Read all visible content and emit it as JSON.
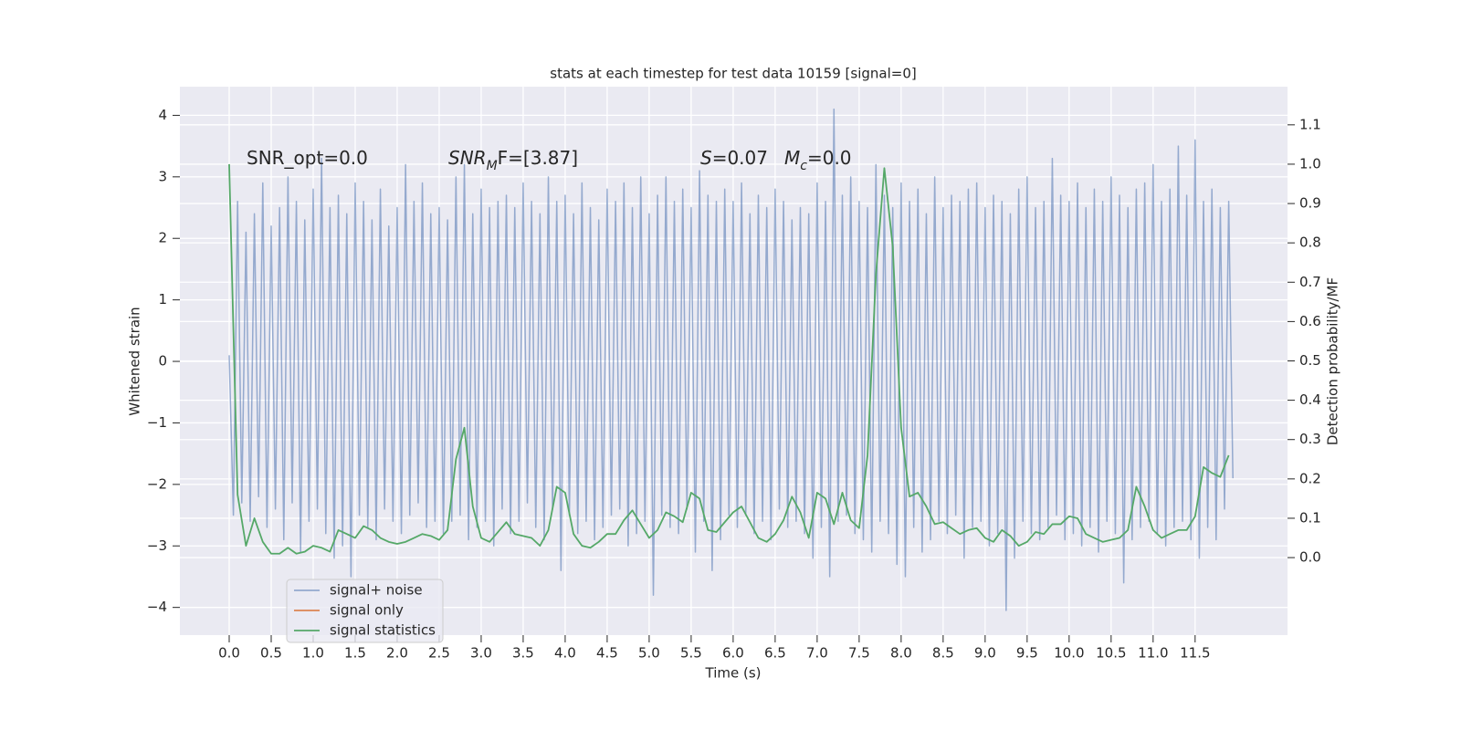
{
  "chart_data": {
    "type": "line",
    "title": "stats at each timestep for test data 10159 [signal=0]",
    "xlabel": "Time (s)",
    "ylabel": "Whitened strain",
    "y2label": "Detection probability/MF",
    "xlim": [
      -0.587,
      12.6
    ],
    "ylim": [
      -4.45,
      4.466
    ],
    "y2lim": [
      -0.197,
      1.197
    ],
    "xticks": [
      {
        "value": 0,
        "label": "0.0"
      },
      0.5,
      {
        "value": 1,
        "label": "1.0"
      },
      1.5,
      {
        "value": 2,
        "label": "2.0"
      },
      2.5,
      {
        "value": 3,
        "label": "3.0"
      },
      3.5,
      {
        "value": 4,
        "label": "4.0"
      },
      4.5,
      {
        "value": 5,
        "label": "5.0"
      },
      5.5,
      {
        "value": 6,
        "label": "6.0"
      },
      6.5,
      {
        "value": 7,
        "label": "7.0"
      },
      7.5,
      {
        "value": 8,
        "label": "8.0"
      },
      8.5,
      {
        "value": 9,
        "label": "9.0"
      },
      9.5,
      {
        "value": 10,
        "label": "10.0"
      },
      10.5,
      {
        "value": 11,
        "label": "11.0"
      },
      11.5
    ],
    "yticks": [
      {
        "value": -4,
        "label": "−4"
      },
      {
        "value": -3,
        "label": "−3"
      },
      {
        "value": -2,
        "label": "−2"
      },
      {
        "value": -1,
        "label": "−1"
      },
      0,
      1,
      2,
      3,
      4
    ],
    "y2ticks": [
      {
        "value": 0,
        "label": "0.0"
      },
      0.1,
      0.2,
      0.3,
      0.4,
      0.5,
      0.6,
      0.7,
      0.8,
      0.9,
      {
        "value": 1,
        "label": "1.0"
      },
      1.1
    ],
    "grid": true,
    "background": "#eaeaf2",
    "legend": "lower left",
    "annotations": [
      {
        "text": "SNR_opt=0.0"
      },
      {
        "math": "SNR",
        "sub": "M",
        "text": "F=[3.87]"
      },
      {
        "math": "S",
        "text": "=0.07"
      },
      {
        "math": "M",
        "sub": "c",
        "text": "=0.0"
      }
    ],
    "series": [
      {
        "name": "signal+ noise",
        "color": "#4c72b0",
        "alpha": 0.55,
        "x": [
          0,
          0.05,
          0.1,
          0.15,
          0.2,
          0.25,
          0.3,
          0.35,
          0.4,
          0.45,
          0.5,
          0.55,
          0.6,
          0.65,
          0.7,
          0.75,
          0.8,
          0.85,
          0.9,
          0.95,
          1,
          1.05,
          1.1,
          1.15,
          1.2,
          1.25,
          1.3,
          1.35,
          1.4,
          1.45,
          1.5,
          1.55,
          1.6,
          1.65,
          1.7,
          1.75,
          1.8,
          1.85,
          1.9,
          1.95,
          2,
          2.05,
          2.1,
          2.15,
          2.2,
          2.25,
          2.3,
          2.35,
          2.4,
          2.45,
          2.5,
          2.55,
          2.6,
          2.65,
          2.7,
          2.75,
          2.8,
          2.85,
          2.9,
          2.95,
          3,
          3.05,
          3.1,
          3.15,
          3.2,
          3.25,
          3.3,
          3.35,
          3.4,
          3.45,
          3.5,
          3.55,
          3.6,
          3.65,
          3.7,
          3.75,
          3.8,
          3.85,
          3.9,
          3.95,
          4,
          4.05,
          4.1,
          4.15,
          4.2,
          4.25,
          4.3,
          4.35,
          4.4,
          4.45,
          4.5,
          4.55,
          4.6,
          4.65,
          4.7,
          4.75,
          4.8,
          4.85,
          4.9,
          4.95,
          5,
          5.05,
          5.1,
          5.15,
          5.2,
          5.25,
          5.3,
          5.35,
          5.4,
          5.45,
          5.5,
          5.55,
          5.6,
          5.65,
          5.7,
          5.75,
          5.8,
          5.85,
          5.9,
          5.95,
          6,
          6.05,
          6.1,
          6.15,
          6.2,
          6.25,
          6.3,
          6.35,
          6.4,
          6.45,
          6.5,
          6.55,
          6.6,
          6.65,
          6.7,
          6.75,
          6.8,
          6.85,
          6.9,
          6.95,
          7,
          7.05,
          7.1,
          7.15,
          7.2,
          7.25,
          7.3,
          7.35,
          7.4,
          7.45,
          7.5,
          7.55,
          7.6,
          7.65,
          7.7,
          7.75,
          7.8,
          7.85,
          7.9,
          7.95,
          8,
          8.05,
          8.1,
          8.15,
          8.2,
          8.25,
          8.3,
          8.35,
          8.4,
          8.45,
          8.5,
          8.55,
          8.6,
          8.65,
          8.7,
          8.75,
          8.8,
          8.85,
          8.9,
          8.95,
          9,
          9.05,
          9.1,
          9.15,
          9.2,
          9.25,
          9.3,
          9.35,
          9.4,
          9.45,
          9.5,
          9.55,
          9.6,
          9.65,
          9.7,
          9.75,
          9.8,
          9.85,
          9.9,
          9.95,
          10,
          10.05,
          10.1,
          10.15,
          10.2,
          10.25,
          10.3,
          10.35,
          10.4,
          10.45,
          10.5,
          10.55,
          10.6,
          10.65,
          10.7,
          10.75,
          10.8,
          10.85,
          10.9,
          10.95,
          11,
          11.05,
          11.1,
          11.15,
          11.2,
          11.25,
          11.3,
          11.35,
          11.4,
          11.45,
          11.5,
          11.55,
          11.6,
          11.65,
          11.7,
          11.75,
          11.8,
          11.85,
          11.9,
          11.95
        ],
        "values": [
          0.1,
          -2.5,
          2.6,
          -2.3,
          2.1,
          -2.6,
          2.4,
          -2.2,
          2.9,
          -2.7,
          2.2,
          -2.4,
          2.5,
          -2.9,
          3.0,
          -2.3,
          2.6,
          -3.1,
          2.3,
          -2.6,
          2.8,
          -2.4,
          3.3,
          -2.8,
          2.5,
          -3.2,
          2.7,
          -3.0,
          2.4,
          -3.5,
          2.9,
          -2.5,
          2.6,
          -2.7,
          2.3,
          -2.9,
          2.8,
          -2.4,
          2.2,
          -2.6,
          2.5,
          -2.8,
          3.2,
          -2.5,
          2.6,
          -2.3,
          2.9,
          -2.7,
          2.4,
          -2.6,
          2.5,
          -2.8,
          2.3,
          -2.6,
          3.0,
          -2.5,
          3.2,
          -2.9,
          2.4,
          -2.7,
          2.8,
          -2.6,
          2.5,
          -3.0,
          2.6,
          -2.4,
          2.7,
          -2.8,
          2.5,
          -2.6,
          2.9,
          -2.3,
          2.6,
          -2.7,
          2.4,
          -2.9,
          3.0,
          -2.4,
          2.6,
          -3.4,
          2.7,
          -2.5,
          2.4,
          -2.8,
          2.9,
          -2.6,
          2.5,
          -2.9,
          2.3,
          -2.7,
          2.8,
          -2.5,
          2.6,
          -2.4,
          2.9,
          -3.0,
          2.5,
          -2.8,
          3.0,
          -2.6,
          2.4,
          -3.8,
          2.7,
          -2.5,
          3.0,
          -2.7,
          2.6,
          -2.8,
          2.8,
          -2.4,
          2.5,
          -3.1,
          3.1,
          -2.6,
          2.7,
          -3.4,
          2.6,
          -2.9,
          2.8,
          -2.5,
          2.6,
          -2.7,
          2.9,
          -2.5,
          2.4,
          -2.8,
          2.7,
          -2.6,
          2.5,
          -2.9,
          2.8,
          -2.4,
          2.6,
          -2.7,
          2.3,
          -2.6,
          2.5,
          -2.8,
          2.4,
          -3.2,
          2.9,
          -2.7,
          2.6,
          -3.5,
          4.1,
          -2.6,
          2.7,
          -2.5,
          3.0,
          -2.8,
          2.6,
          -2.9,
          2.5,
          -3.1,
          3.2,
          -2.6,
          2.7,
          -2.8,
          2.5,
          -3.3,
          2.9,
          -3.5,
          2.6,
          -2.7,
          2.8,
          -3.1,
          2.4,
          -2.9,
          3.0,
          -2.6,
          2.5,
          -2.8,
          2.7,
          -2.5,
          2.6,
          -3.2,
          2.8,
          -2.7,
          2.9,
          -2.6,
          2.5,
          -3.0,
          2.7,
          -2.8,
          2.6,
          -4.05,
          2.4,
          -3.2,
          2.8,
          -2.6,
          3.0,
          -2.8,
          2.5,
          -2.9,
          2.6,
          -2.7,
          3.3,
          -2.5,
          2.7,
          -2.9,
          2.6,
          -2.8,
          2.9,
          -3.0,
          2.5,
          -2.7,
          2.8,
          -3.1,
          2.6,
          -2.6,
          3.0,
          -2.8,
          2.7,
          -3.6,
          2.5,
          -2.9,
          2.8,
          -2.7,
          2.9,
          -2.6,
          3.2,
          -2.8,
          2.6,
          -3.0,
          2.8,
          -2.7,
          3.5,
          -2.6,
          2.7,
          -2.9,
          3.6,
          -3.2,
          2.6,
          -2.7,
          2.8,
          -2.9,
          2.5,
          -2.4,
          2.6,
          -1.9
        ]
      },
      {
        "name": "signal only",
        "color": "#dd8452",
        "alpha": 1,
        "x": [],
        "values": []
      },
      {
        "name": "signal statistics",
        "color": "#55a868",
        "alpha": 1,
        "axis": "y2",
        "x": [
          0,
          0.1,
          0.2,
          0.3,
          0.4,
          0.5,
          0.6,
          0.7,
          0.8,
          0.9,
          1,
          1.1,
          1.2,
          1.3,
          1.4,
          1.5,
          1.6,
          1.7,
          1.8,
          1.9,
          2,
          2.1,
          2.2,
          2.3,
          2.4,
          2.5,
          2.6,
          2.7,
          2.8,
          2.9,
          3,
          3.1,
          3.2,
          3.3,
          3.4,
          3.5,
          3.6,
          3.7,
          3.8,
          3.9,
          4,
          4.1,
          4.2,
          4.3,
          4.4,
          4.5,
          4.6,
          4.7,
          4.8,
          4.9,
          5,
          5.1,
          5.2,
          5.3,
          5.4,
          5.5,
          5.6,
          5.7,
          5.8,
          5.9,
          6,
          6.1,
          6.2,
          6.3,
          6.4,
          6.5,
          6.6,
          6.7,
          6.8,
          6.9,
          7,
          7.1,
          7.2,
          7.3,
          7.4,
          7.5,
          7.6,
          7.7,
          7.8,
          7.9,
          8,
          8.1,
          8.2,
          8.3,
          8.4,
          8.5,
          8.6,
          8.7,
          8.8,
          8.9,
          9,
          9.1,
          9.2,
          9.3,
          9.4,
          9.5,
          9.6,
          9.7,
          9.8,
          9.9,
          10,
          10.1,
          10.2,
          10.3,
          10.4,
          10.5,
          10.6,
          10.7,
          10.8,
          10.9,
          11,
          11.1,
          11.2,
          11.3,
          11.4,
          11.5,
          11.6,
          11.7,
          11.8,
          11.9
        ],
        "values": [
          1.0,
          0.16,
          0.03,
          0.1,
          0.04,
          0.01,
          0.01,
          0.025,
          0.01,
          0.015,
          0.03,
          0.025,
          0.015,
          0.07,
          0.06,
          0.05,
          0.08,
          0.07,
          0.05,
          0.04,
          0.035,
          0.04,
          0.05,
          0.06,
          0.055,
          0.045,
          0.07,
          0.25,
          0.33,
          0.13,
          0.05,
          0.04,
          0.065,
          0.09,
          0.06,
          0.055,
          0.05,
          0.03,
          0.07,
          0.18,
          0.165,
          0.06,
          0.03,
          0.025,
          0.04,
          0.06,
          0.06,
          0.095,
          0.12,
          0.085,
          0.05,
          0.07,
          0.115,
          0.105,
          0.09,
          0.165,
          0.15,
          0.07,
          0.065,
          0.09,
          0.115,
          0.13,
          0.09,
          0.05,
          0.04,
          0.06,
          0.095,
          0.155,
          0.115,
          0.05,
          0.165,
          0.15,
          0.085,
          0.165,
          0.095,
          0.075,
          0.26,
          0.72,
          0.99,
          0.79,
          0.33,
          0.155,
          0.165,
          0.13,
          0.085,
          0.09,
          0.075,
          0.06,
          0.07,
          0.075,
          0.05,
          0.04,
          0.07,
          0.055,
          0.03,
          0.04,
          0.065,
          0.06,
          0.085,
          0.085,
          0.105,
          0.1,
          0.06,
          0.05,
          0.04,
          0.045,
          0.05,
          0.07,
          0.18,
          0.13,
          0.07,
          0.05,
          0.06,
          0.07,
          0.07,
          0.105,
          0.23,
          0.215,
          0.205,
          0.26
        ]
      }
    ]
  }
}
